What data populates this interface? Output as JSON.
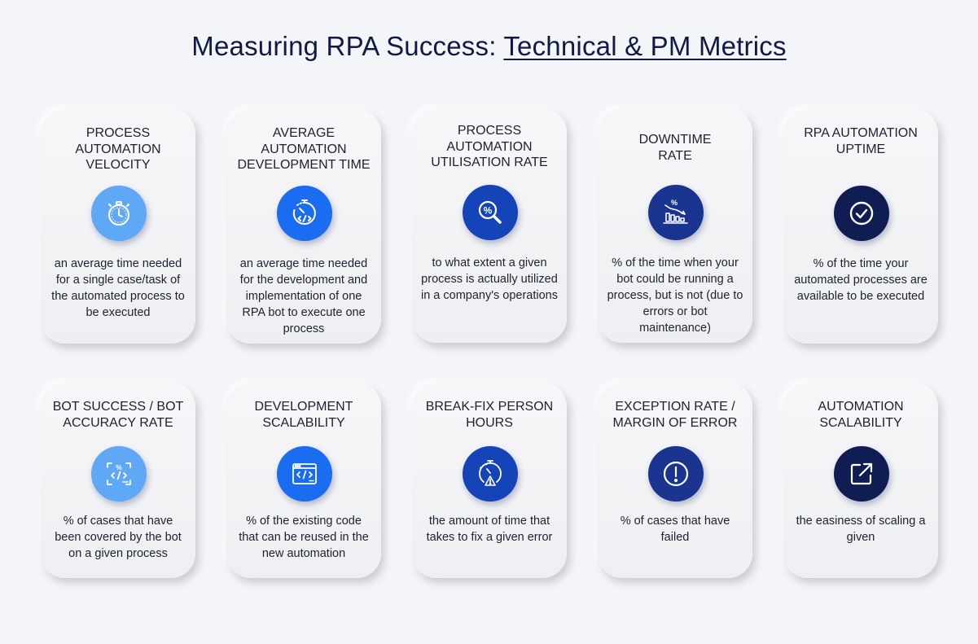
{
  "title": {
    "plain": "Measuring RPA Success: ",
    "linked": "Technical & PM Metrics"
  },
  "cards": [
    {
      "title": "PROCESS AUTOMATION VELOCITY",
      "icon": "stopwatch-icon",
      "icon_color": "#5fa8f5",
      "description": "an average time needed for a single case/task of the automated process to be executed"
    },
    {
      "title": "AVERAGE AUTOMATION DEVELOPMENT TIME",
      "icon": "code-stopwatch-icon",
      "icon_color": "#1a6cf0",
      "description": "an average time needed for the development and implementation of one RPA bot to execute one process"
    },
    {
      "title": "PROCESS AUTOMATION UTILISATION RATE",
      "icon": "percent-search-icon",
      "icon_color": "#1543b8",
      "description": "to what extent a given process is actually utilized in a company's operations"
    },
    {
      "title": "DOWNTIME RATE",
      "icon": "declining-chart-icon",
      "icon_color": "#1a3590",
      "description": "% of the time when your bot could be running a process, but is not (due to errors or bot maintenance)"
    },
    {
      "title": "RPA AUTOMATION UPTIME",
      "icon": "check-circle-icon",
      "icon_color": "#0f1d52",
      "description": "% of the time your automated processes are available to be executed"
    },
    {
      "title": "BOT SUCCESS / BOT ACCURACY RATE",
      "icon": "code-percent-icon",
      "icon_color": "#5fa8f5",
      "description": "% of cases that have been covered by the bot on a given process"
    },
    {
      "title": "DEVELOPMENT SCALABILITY",
      "icon": "code-window-icon",
      "icon_color": "#1a6cf0",
      "description": "% of the existing code that can be reused in the new automation"
    },
    {
      "title": "BREAK-FIX PERSON HOURS",
      "icon": "stopwatch-warning-icon",
      "icon_color": "#1543b8",
      "description": "the amount of time that takes to fix a given error"
    },
    {
      "title": "EXCEPTION RATE / MARGIN OF ERROR",
      "icon": "exclamation-circle-icon",
      "icon_color": "#1a3590",
      "description": "% of cases that have failed"
    },
    {
      "title": "AUTOMATION SCALABILITY",
      "icon": "external-link-icon",
      "icon_color": "#0f1d52",
      "description": "the easiness of scaling a given"
    }
  ]
}
